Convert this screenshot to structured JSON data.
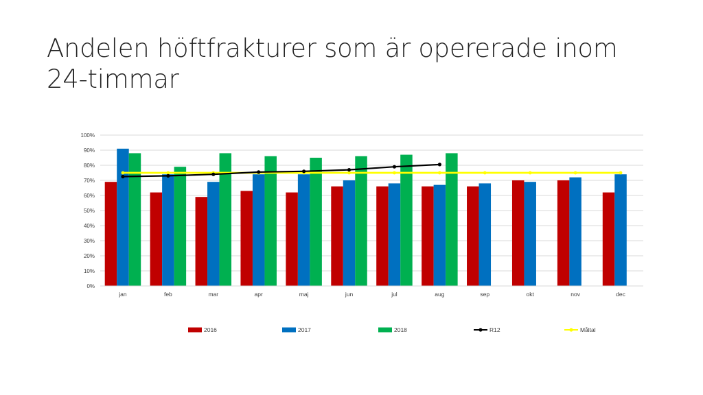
{
  "slide": {
    "title": "Andelen höftfrakturer som är opererade inom 24-timmar"
  },
  "chart_data": {
    "type": "bar",
    "title": "",
    "xlabel": "",
    "ylabel": "",
    "ylim": [
      0,
      100
    ],
    "ytick_values": [
      0,
      10,
      20,
      30,
      40,
      50,
      60,
      70,
      80,
      90,
      100
    ],
    "ytick_labels": [
      "0%",
      "10%",
      "20%",
      "30%",
      "40%",
      "50%",
      "60%",
      "70%",
      "80%",
      "90%",
      "100%"
    ],
    "grid": true,
    "legend_position": "bottom",
    "categories": [
      "jan",
      "feb",
      "mar",
      "apr",
      "maj",
      "jun",
      "jul",
      "aug",
      "sep",
      "okt",
      "nov",
      "dec"
    ],
    "series": [
      {
        "name": "2016",
        "kind": "bar",
        "color": "#C00000",
        "values": [
          69,
          62,
          59,
          63,
          62,
          66,
          66,
          66,
          66,
          70,
          70,
          62
        ]
      },
      {
        "name": "2017",
        "kind": "bar",
        "color": "#0070C0",
        "values": [
          91,
          74,
          69,
          74,
          74,
          70,
          68,
          67,
          68,
          69,
          72,
          74
        ]
      },
      {
        "name": "2018",
        "kind": "bar",
        "color": "#00B050",
        "values": [
          88,
          79,
          88,
          86,
          85,
          86,
          87,
          88,
          null,
          null,
          null,
          null
        ]
      },
      {
        "name": "R12",
        "kind": "line",
        "color": "#000000",
        "values": [
          72.5,
          73,
          74,
          75.5,
          76,
          77,
          79,
          80.5,
          null,
          null,
          null,
          null
        ]
      },
      {
        "name": "Måltal",
        "kind": "line",
        "color": "#FFFF00",
        "values": [
          75,
          75,
          75,
          75,
          75,
          75,
          75,
          75,
          75,
          75,
          75,
          75
        ]
      }
    ]
  }
}
